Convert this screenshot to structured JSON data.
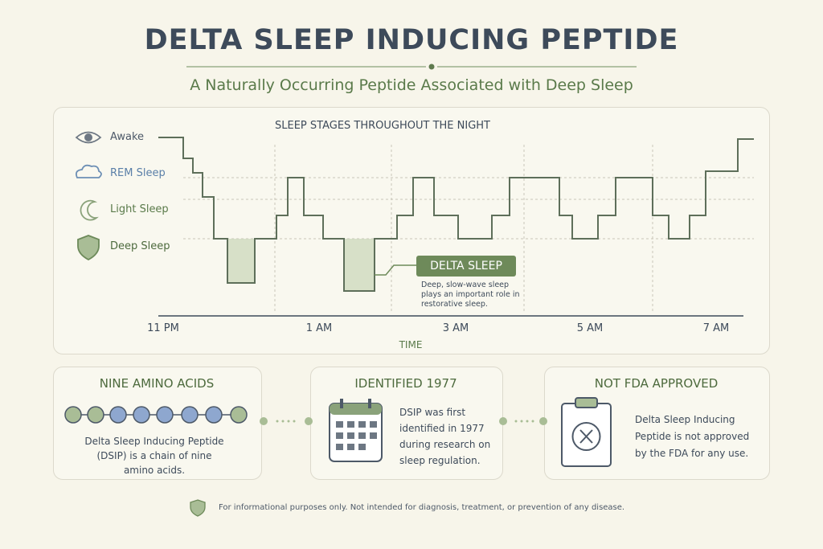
{
  "header": {
    "title": "DELTA SLEEP INDUCING PEPTIDE",
    "subtitle": "A Naturally Occurring Peptide Associated with Deep Sleep"
  },
  "sleep_chart": {
    "title": "SLEEP STAGES THROUGHOUT THE NIGHT",
    "stages": [
      "Awake",
      "REM Sleep",
      "Light Sleep",
      "Deep Sleep"
    ],
    "time_labels": [
      "11 PM",
      "1 AM",
      "3 AM",
      "5 AM",
      "7 AM"
    ],
    "x_label": "TIME",
    "callout": {
      "title": "DELTA SLEEP",
      "text": "Deep, slow-wave sleep plays an important role in restorative sleep."
    }
  },
  "cards": [
    {
      "title": "NINE AMINO ACIDS",
      "text": "Delta Sleep Inducing Peptide (DSIP) is a chain of nine amino acids."
    },
    {
      "title": "IDENTIFIED 1977",
      "text": "DSIP was first identified in 1977 during research on sleep regulation."
    },
    {
      "title": "NOT FDA APPROVED",
      "text": "Delta Sleep Inducing Peptide is not approved by the FDA for any use."
    }
  ],
  "footer": "For informational purposes only. Not intended for diagnosis, treatment, or prevention of any disease."
}
